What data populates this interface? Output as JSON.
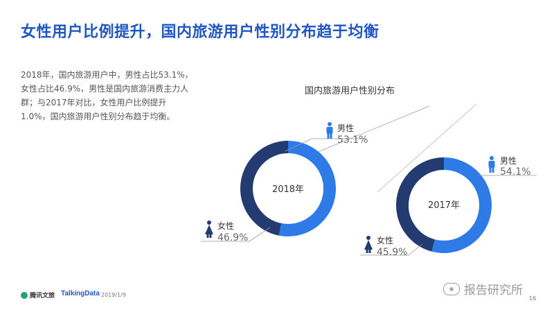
{
  "header": {
    "title": "女性用户比例提升，国内旅游用户性别分布趋于均衡"
  },
  "summary": "2018年，国内旅游用户中，男性占比53.1%，女性占比46.9%，男性是国内旅游消费主力人群；与2017年对比，女性用户比例提升1.0%，国内旅游用户性别分布趋于均衡。",
  "chart_data": {
    "type": "pie",
    "title": "国内旅游用户性别分布",
    "donuts": [
      {
        "year_label": "2018年",
        "male_label": "男性",
        "male_value_text": "53.1%",
        "male_value": 53.1,
        "female_label": "女性",
        "female_value_text": "46.9%",
        "female_value": 46.9
      },
      {
        "year_label": "2017年",
        "male_label": "男性",
        "male_value_text": "54.1%",
        "male_value": 54.1,
        "female_label": "女性",
        "female_value_text": "45.9%",
        "female_value": 45.9
      }
    ],
    "colors": {
      "male": "#2e7be8",
      "female": "#243b72"
    }
  },
  "footer": {
    "logo_1": "腾讯文旅",
    "logo_2": "TalkingData",
    "date": "2019/1/9",
    "watermark": "报告研究所",
    "page": "16"
  }
}
